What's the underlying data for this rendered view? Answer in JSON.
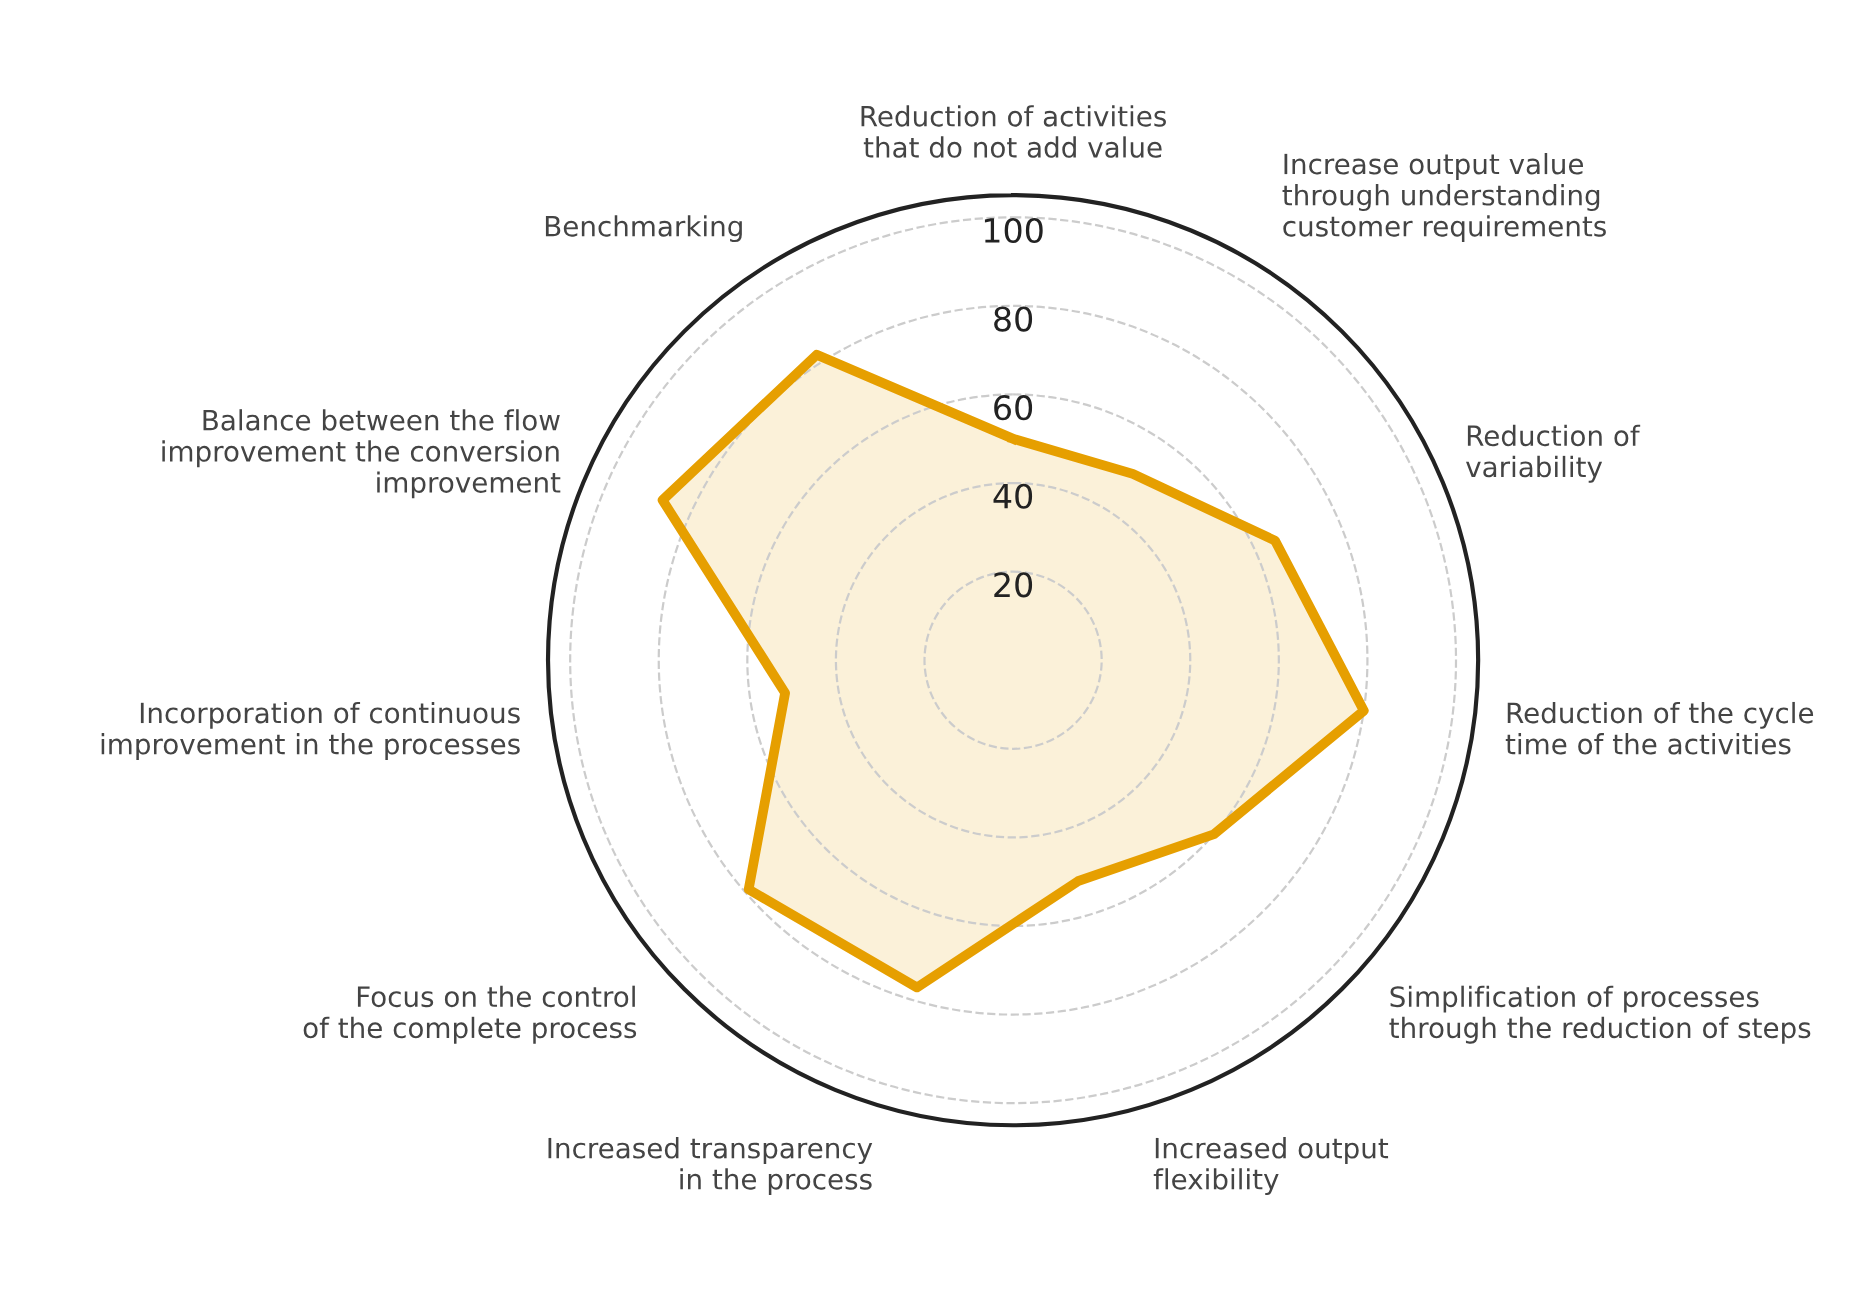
{
  "chart_data": {
    "type": "radar",
    "categories": [
      "Reduction of activities\nthat do not add value",
      "Increase output value\nthrough understanding\ncustomer requirements",
      "Reduction of\nvariability",
      "Reduction of the cycle\ntime of the activities",
      "Simplification of processes\nthrough the reduction of steps",
      "Increased output\nflexibility",
      "Increased transparency\nin the process",
      "Focus on the control\nof the complete process",
      "Incorporation of continuous\nimprovement in the processes",
      "Balance between the flow\nimprovement the conversion\nimprovement",
      "Benchmarking"
    ],
    "series": [
      {
        "color": "#e69f00",
        "values": [
          50,
          50,
          65,
          80,
          60,
          52,
          77,
          79,
          52,
          87,
          82
        ]
      }
    ],
    "ylim": [
      0,
      105
    ],
    "yticks": [
      20,
      40,
      60,
      80,
      100
    ],
    "grid": "y",
    "marker": "none",
    "line_style": "solid"
  }
}
